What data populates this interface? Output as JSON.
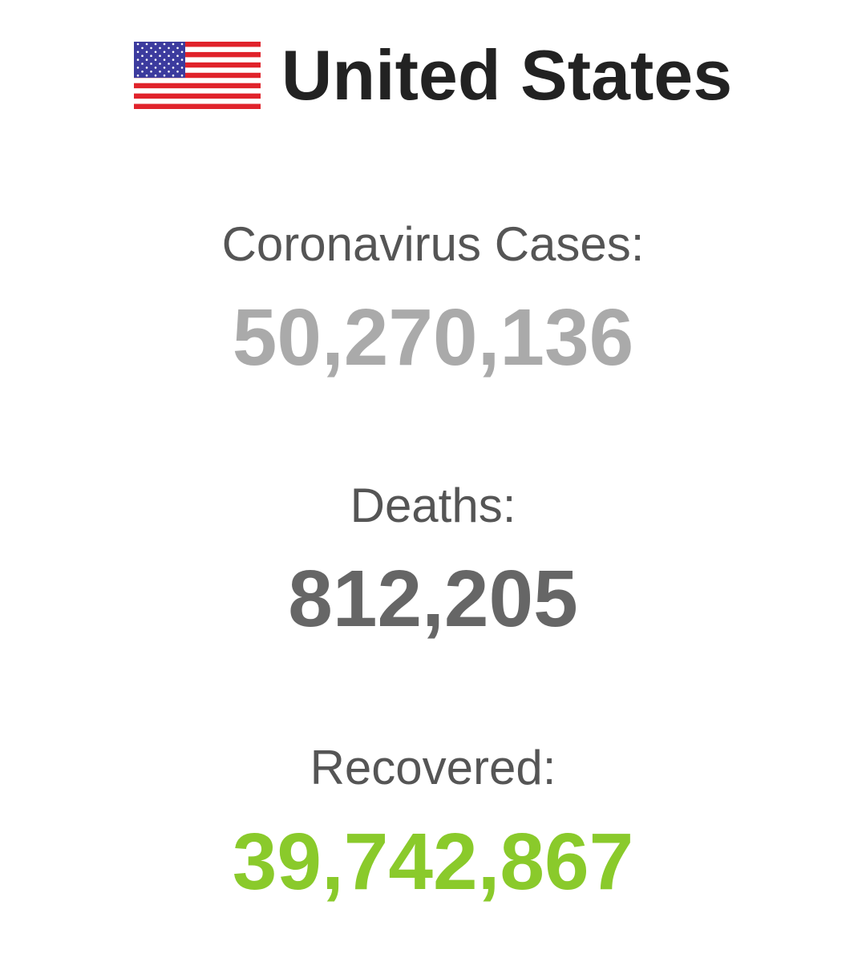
{
  "country": {
    "name": "United States",
    "flag_icon": "us-flag-icon"
  },
  "stats": {
    "cases": {
      "label": "Coronavirus Cases:",
      "value": "50,270,136",
      "color": "#aaaaaa"
    },
    "deaths": {
      "label": "Deaths:",
      "value": "812,205",
      "color": "#666666"
    },
    "recovered": {
      "label": "Recovered:",
      "value": "39,742,867",
      "color": "#8ACA2B"
    }
  }
}
